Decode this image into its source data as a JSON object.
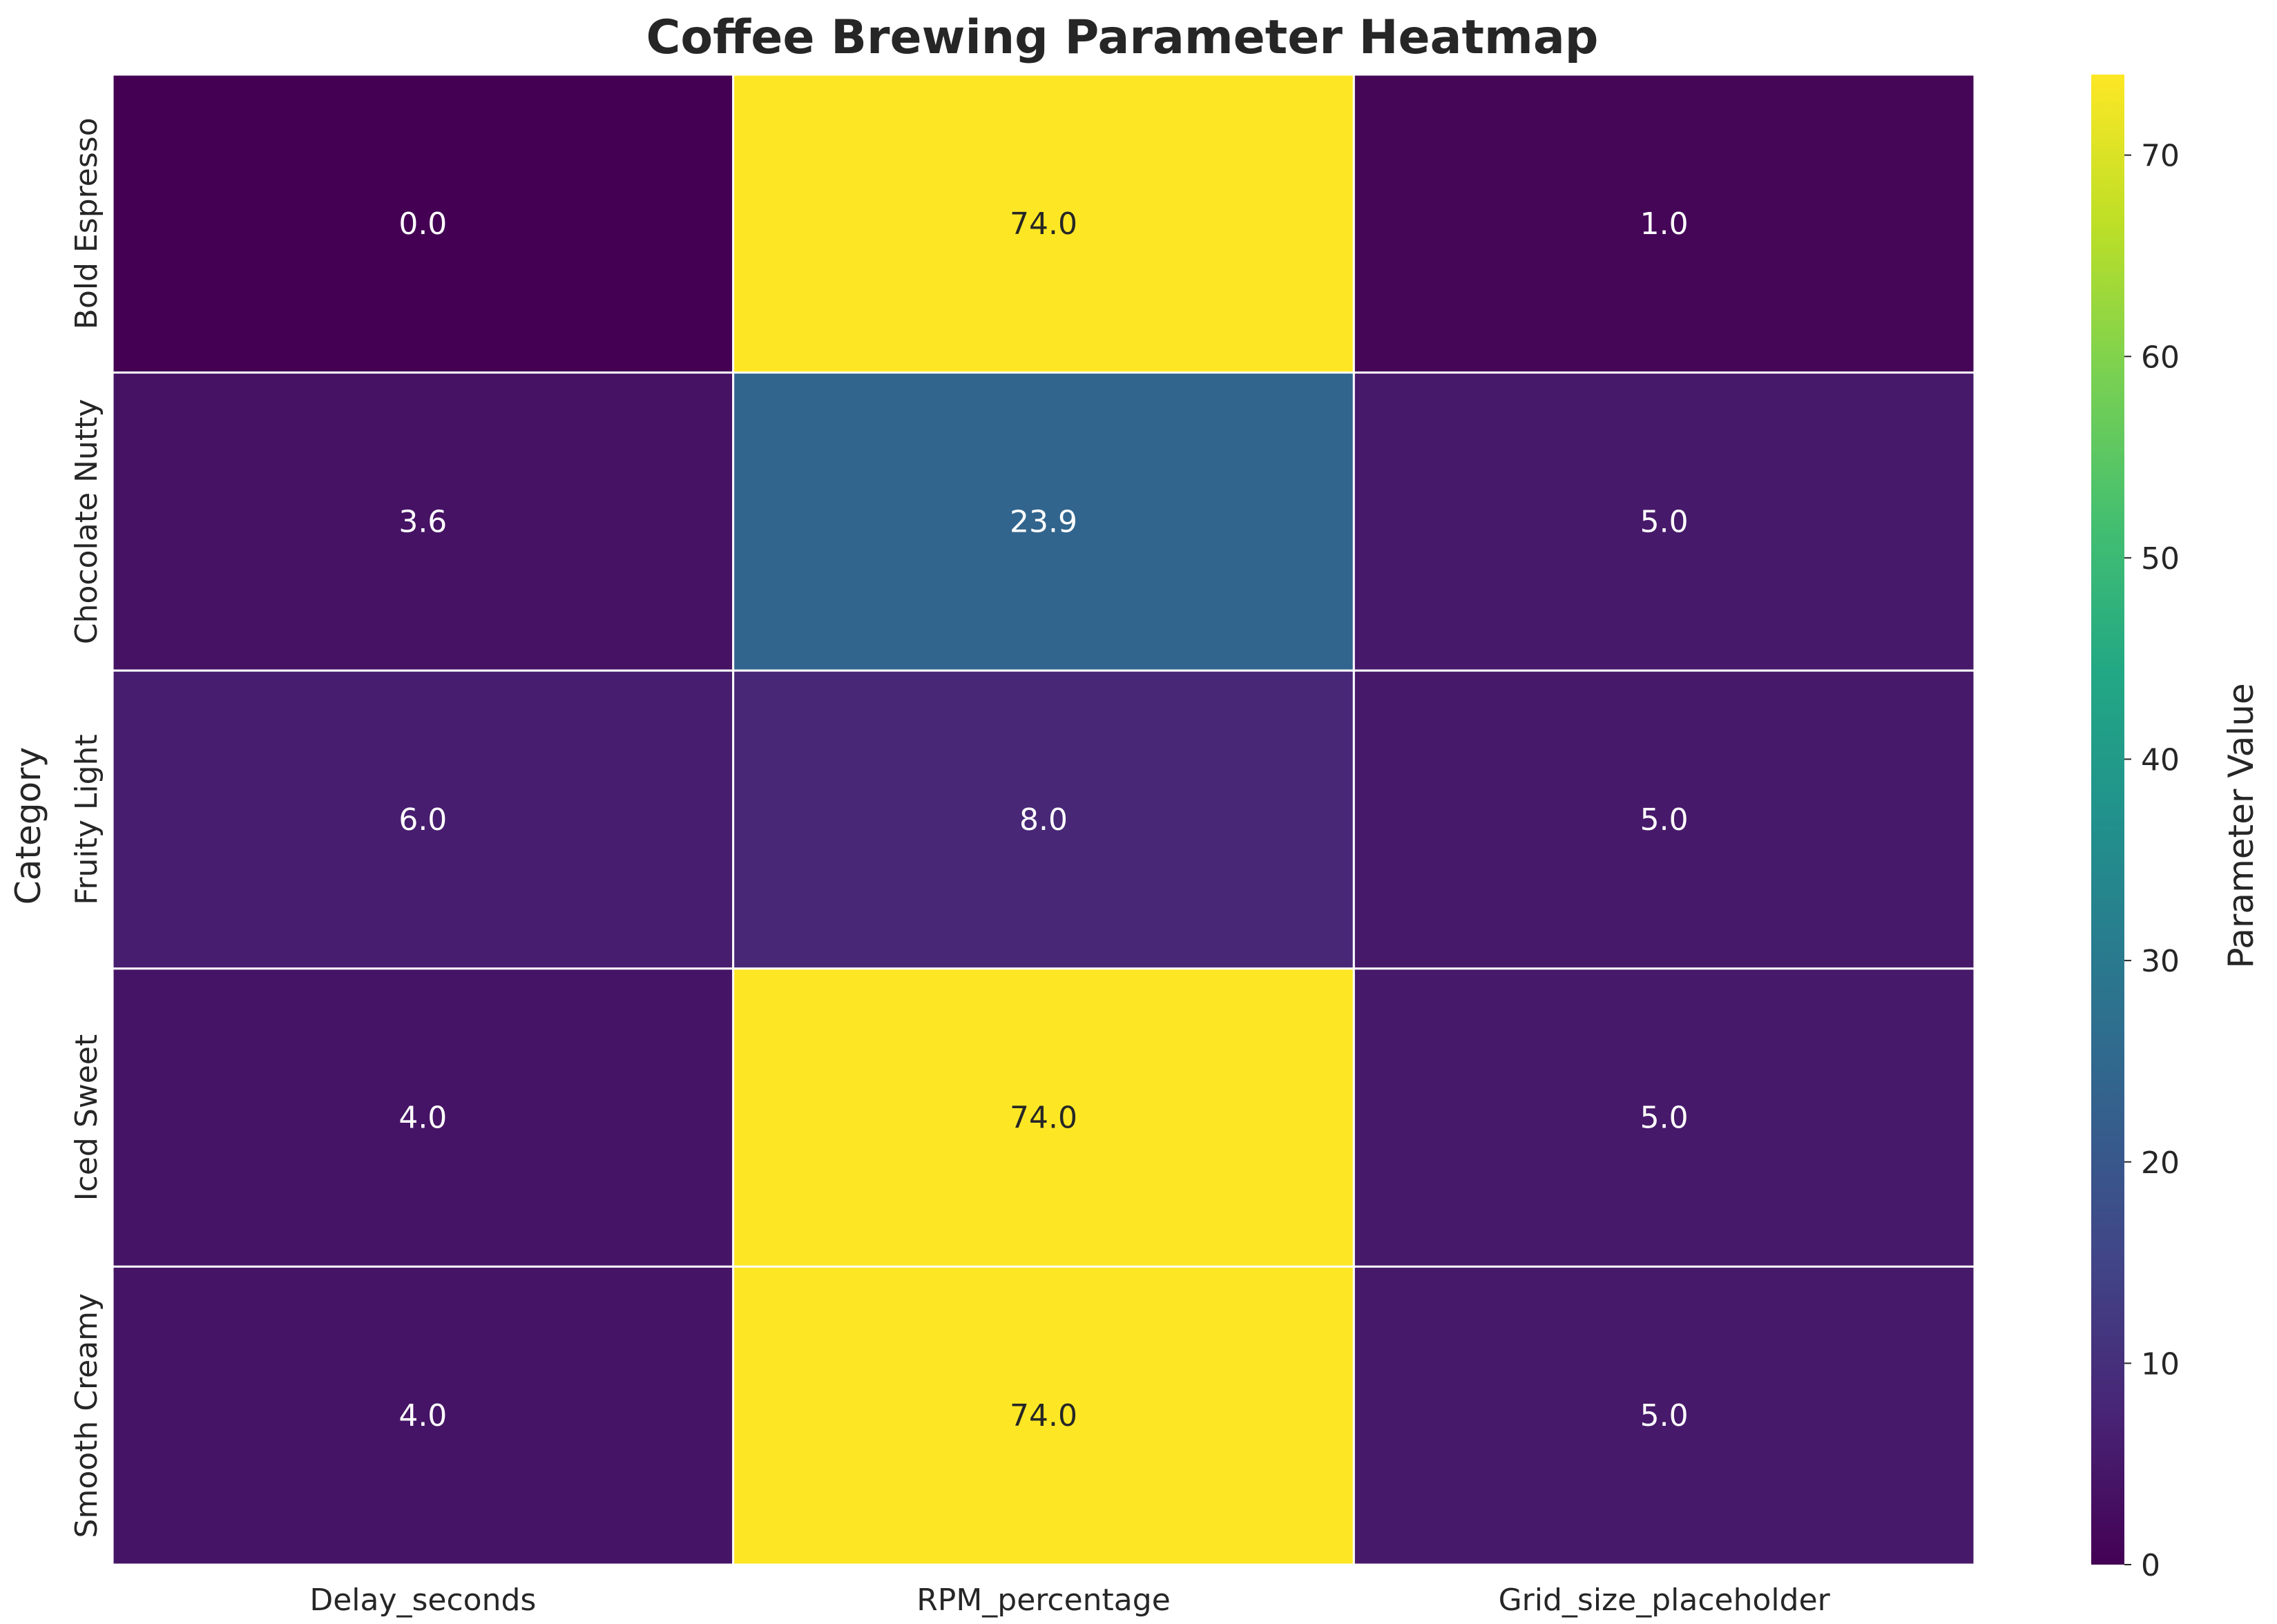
{
  "chart_data": {
    "type": "heatmap",
    "title": "Coffee Brewing Parameter Heatmap",
    "xlabel": "",
    "ylabel": "Category",
    "x_categories": [
      "Delay_seconds",
      "RPM_percentage",
      "Grid_size_placeholder"
    ],
    "y_categories": [
      "Bold Espresso",
      "Chocolate Nutty",
      "Fruity Light",
      "Iced Sweet",
      "Smooth Creamy"
    ],
    "values": [
      [
        0.0,
        74.0,
        1.0
      ],
      [
        3.6,
        23.9,
        5.0
      ],
      [
        6.0,
        8.0,
        5.0
      ],
      [
        4.0,
        74.0,
        5.0
      ],
      [
        4.0,
        74.0,
        5.0
      ]
    ],
    "value_format": "0.0",
    "colormap": "viridis",
    "vmin": 0,
    "vmax": 74,
    "colorbar": {
      "label": "Parameter Value",
      "ticks": [
        0,
        10,
        20,
        30,
        40,
        50,
        60,
        70
      ]
    },
    "cell_border_color": "#ffffff",
    "grid": false
  }
}
